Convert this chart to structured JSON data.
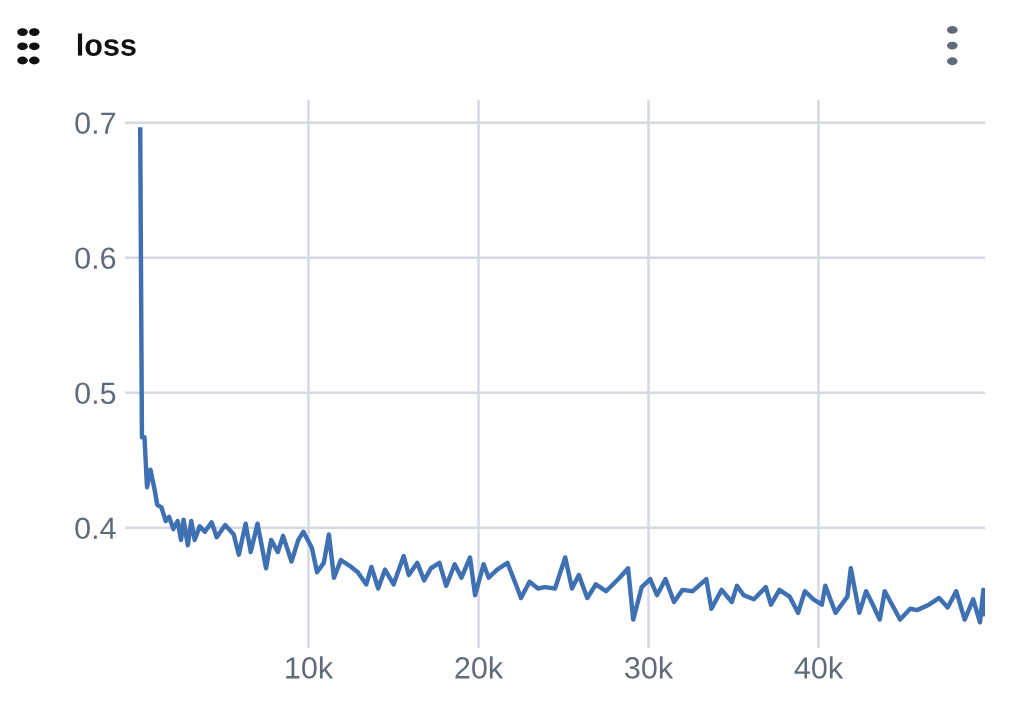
{
  "chart_data": {
    "type": "line",
    "title": "loss",
    "x": [
      100,
      200,
      350,
      500,
      700,
      950,
      1100,
      1350,
      1600,
      1800,
      2050,
      2300,
      2500,
      2650,
      2900,
      3100,
      3300,
      3600,
      3900,
      4300,
      4600,
      5100,
      5600,
      5900,
      6300,
      6600,
      7000,
      7500,
      7800,
      8200,
      8500,
      9000,
      9400,
      9700,
      10200,
      10500,
      10900,
      11200,
      11500,
      11900,
      12400,
      12900,
      13400,
      13700,
      14100,
      14500,
      15000,
      15600,
      15900,
      16400,
      16800,
      17200,
      17700,
      18100,
      18600,
      19000,
      19500,
      19800,
      20300,
      20600,
      21100,
      21700,
      22200,
      22500,
      23000,
      23500,
      23900,
      24500,
      25100,
      25500,
      25900,
      26400,
      26900,
      27500,
      28300,
      28800,
      29100,
      29600,
      30100,
      30500,
      31000,
      31500,
      32000,
      32600,
      33400,
      33700,
      34300,
      34900,
      35200,
      35600,
      36200,
      36900,
      37200,
      37700,
      38300,
      38800,
      39200,
      39700,
      40200,
      40400,
      41000,
      41700,
      41900,
      42400,
      42800,
      43200,
      43600,
      43900,
      44800,
      45400,
      45800,
      46500,
      47100,
      47600,
      48100,
      48600,
      49100,
      49500,
      49700,
      49800
    ],
    "series": [
      {
        "color": "#3e70b2",
        "values": [
          0.695,
          0.467,
          0.467,
          0.43,
          0.443,
          0.428,
          0.417,
          0.415,
          0.405,
          0.408,
          0.399,
          0.405,
          0.391,
          0.406,
          0.387,
          0.405,
          0.391,
          0.401,
          0.397,
          0.404,
          0.393,
          0.402,
          0.395,
          0.38,
          0.403,
          0.382,
          0.403,
          0.37,
          0.391,
          0.382,
          0.394,
          0.375,
          0.391,
          0.397,
          0.385,
          0.367,
          0.374,
          0.395,
          0.363,
          0.376,
          0.372,
          0.367,
          0.358,
          0.371,
          0.355,
          0.369,
          0.358,
          0.379,
          0.365,
          0.374,
          0.361,
          0.37,
          0.374,
          0.357,
          0.373,
          0.363,
          0.378,
          0.35,
          0.373,
          0.363,
          0.369,
          0.374,
          0.358,
          0.348,
          0.36,
          0.355,
          0.356,
          0.355,
          0.378,
          0.355,
          0.365,
          0.348,
          0.358,
          0.353,
          0.363,
          0.37,
          0.332,
          0.356,
          0.362,
          0.35,
          0.362,
          0.345,
          0.354,
          0.353,
          0.362,
          0.34,
          0.354,
          0.345,
          0.357,
          0.35,
          0.347,
          0.356,
          0.343,
          0.354,
          0.349,
          0.337,
          0.353,
          0.347,
          0.343,
          0.357,
          0.337,
          0.349,
          0.37,
          0.337,
          0.353,
          0.343,
          0.332,
          0.353,
          0.332,
          0.34,
          0.339,
          0.343,
          0.348,
          0.341,
          0.353,
          0.332,
          0.347,
          0.33,
          0.354,
          0.336
        ]
      }
    ],
    "xlim": [
      -800,
      49800
    ],
    "ylim": [
      0.311,
      0.717
    ],
    "xticks": [
      {
        "value": 10000,
        "label": "10k"
      },
      {
        "value": 20000,
        "label": "20k"
      },
      {
        "value": 30000,
        "label": "30k"
      },
      {
        "value": 40000,
        "label": "40k"
      }
    ],
    "yticks": [
      0.4,
      0.5,
      0.6,
      0.7
    ],
    "grid": true,
    "marker": "none",
    "line_style": "solid"
  }
}
